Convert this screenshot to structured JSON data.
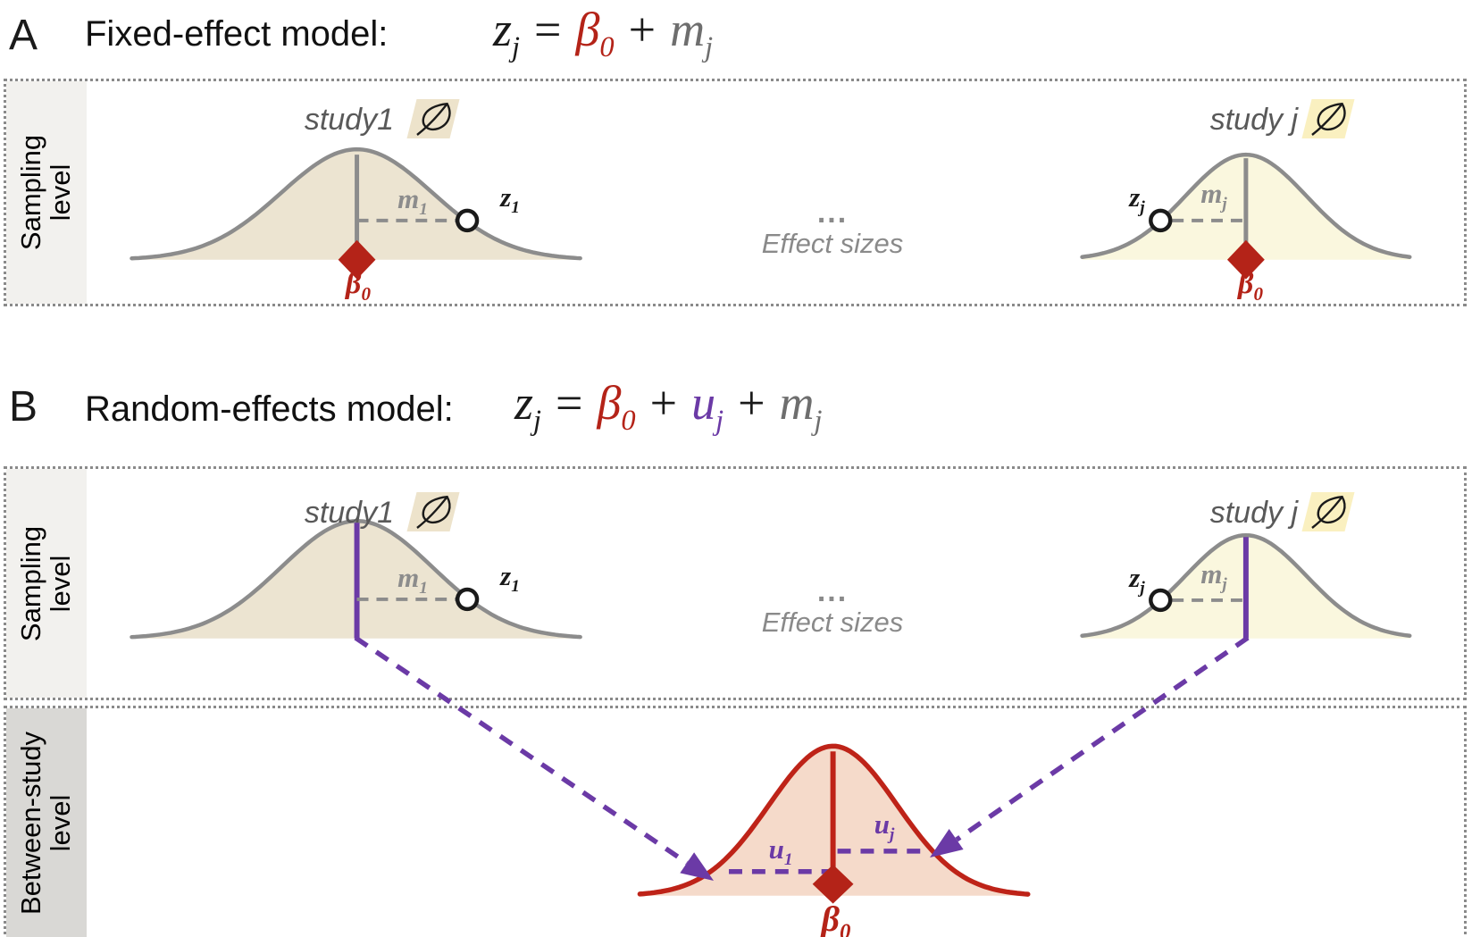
{
  "colors": {
    "red": "#B42318",
    "purple": "#6B3AA6",
    "term_gray": "#6E6E6E",
    "curve_gray": "#8C8C8C"
  },
  "panel_a": {
    "tag": "A",
    "title": "Fixed-effect model:",
    "equation": [
      {
        "base": "z",
        "sub": "j",
        "color": "#1a1a1a"
      },
      {
        "op": "="
      },
      {
        "base": "β",
        "sub": "0",
        "color": "#B42318"
      },
      {
        "op": "+"
      },
      {
        "base": "m",
        "sub": "j",
        "color": "#6E6E6E"
      }
    ]
  },
  "panel_b": {
    "tag": "B",
    "title": "Random-effects model:",
    "equation": [
      {
        "base": "z",
        "sub": "j",
        "color": "#1a1a1a"
      },
      {
        "op": "="
      },
      {
        "base": "β",
        "sub": "0",
        "color": "#B42318"
      },
      {
        "op": "+"
      },
      {
        "base": "u",
        "sub": "j",
        "color": "#6B3AA6"
      },
      {
        "op": "+"
      },
      {
        "base": "m",
        "sub": "j",
        "color": "#6E6E6E"
      }
    ]
  },
  "levels": {
    "sampling": {
      "line1": "Sampling",
      "line2": "level"
    },
    "between": {
      "line1": "Between-study",
      "line2": "level"
    }
  },
  "study1": {
    "name": "study1",
    "m": {
      "base": "m",
      "sub": "1"
    },
    "z": {
      "base": "z",
      "sub": "1"
    }
  },
  "studyj": {
    "name": "study j",
    "m": {
      "base": "m",
      "sub": "j"
    },
    "z": {
      "base": "z",
      "sub": "j"
    }
  },
  "middle": {
    "dots": "...",
    "label": "Effect sizes"
  },
  "beta0": {
    "base": "β",
    "sub": "0"
  },
  "u1": {
    "base": "u",
    "sub": "1"
  },
  "uj": {
    "base": "u",
    "sub": "j"
  }
}
